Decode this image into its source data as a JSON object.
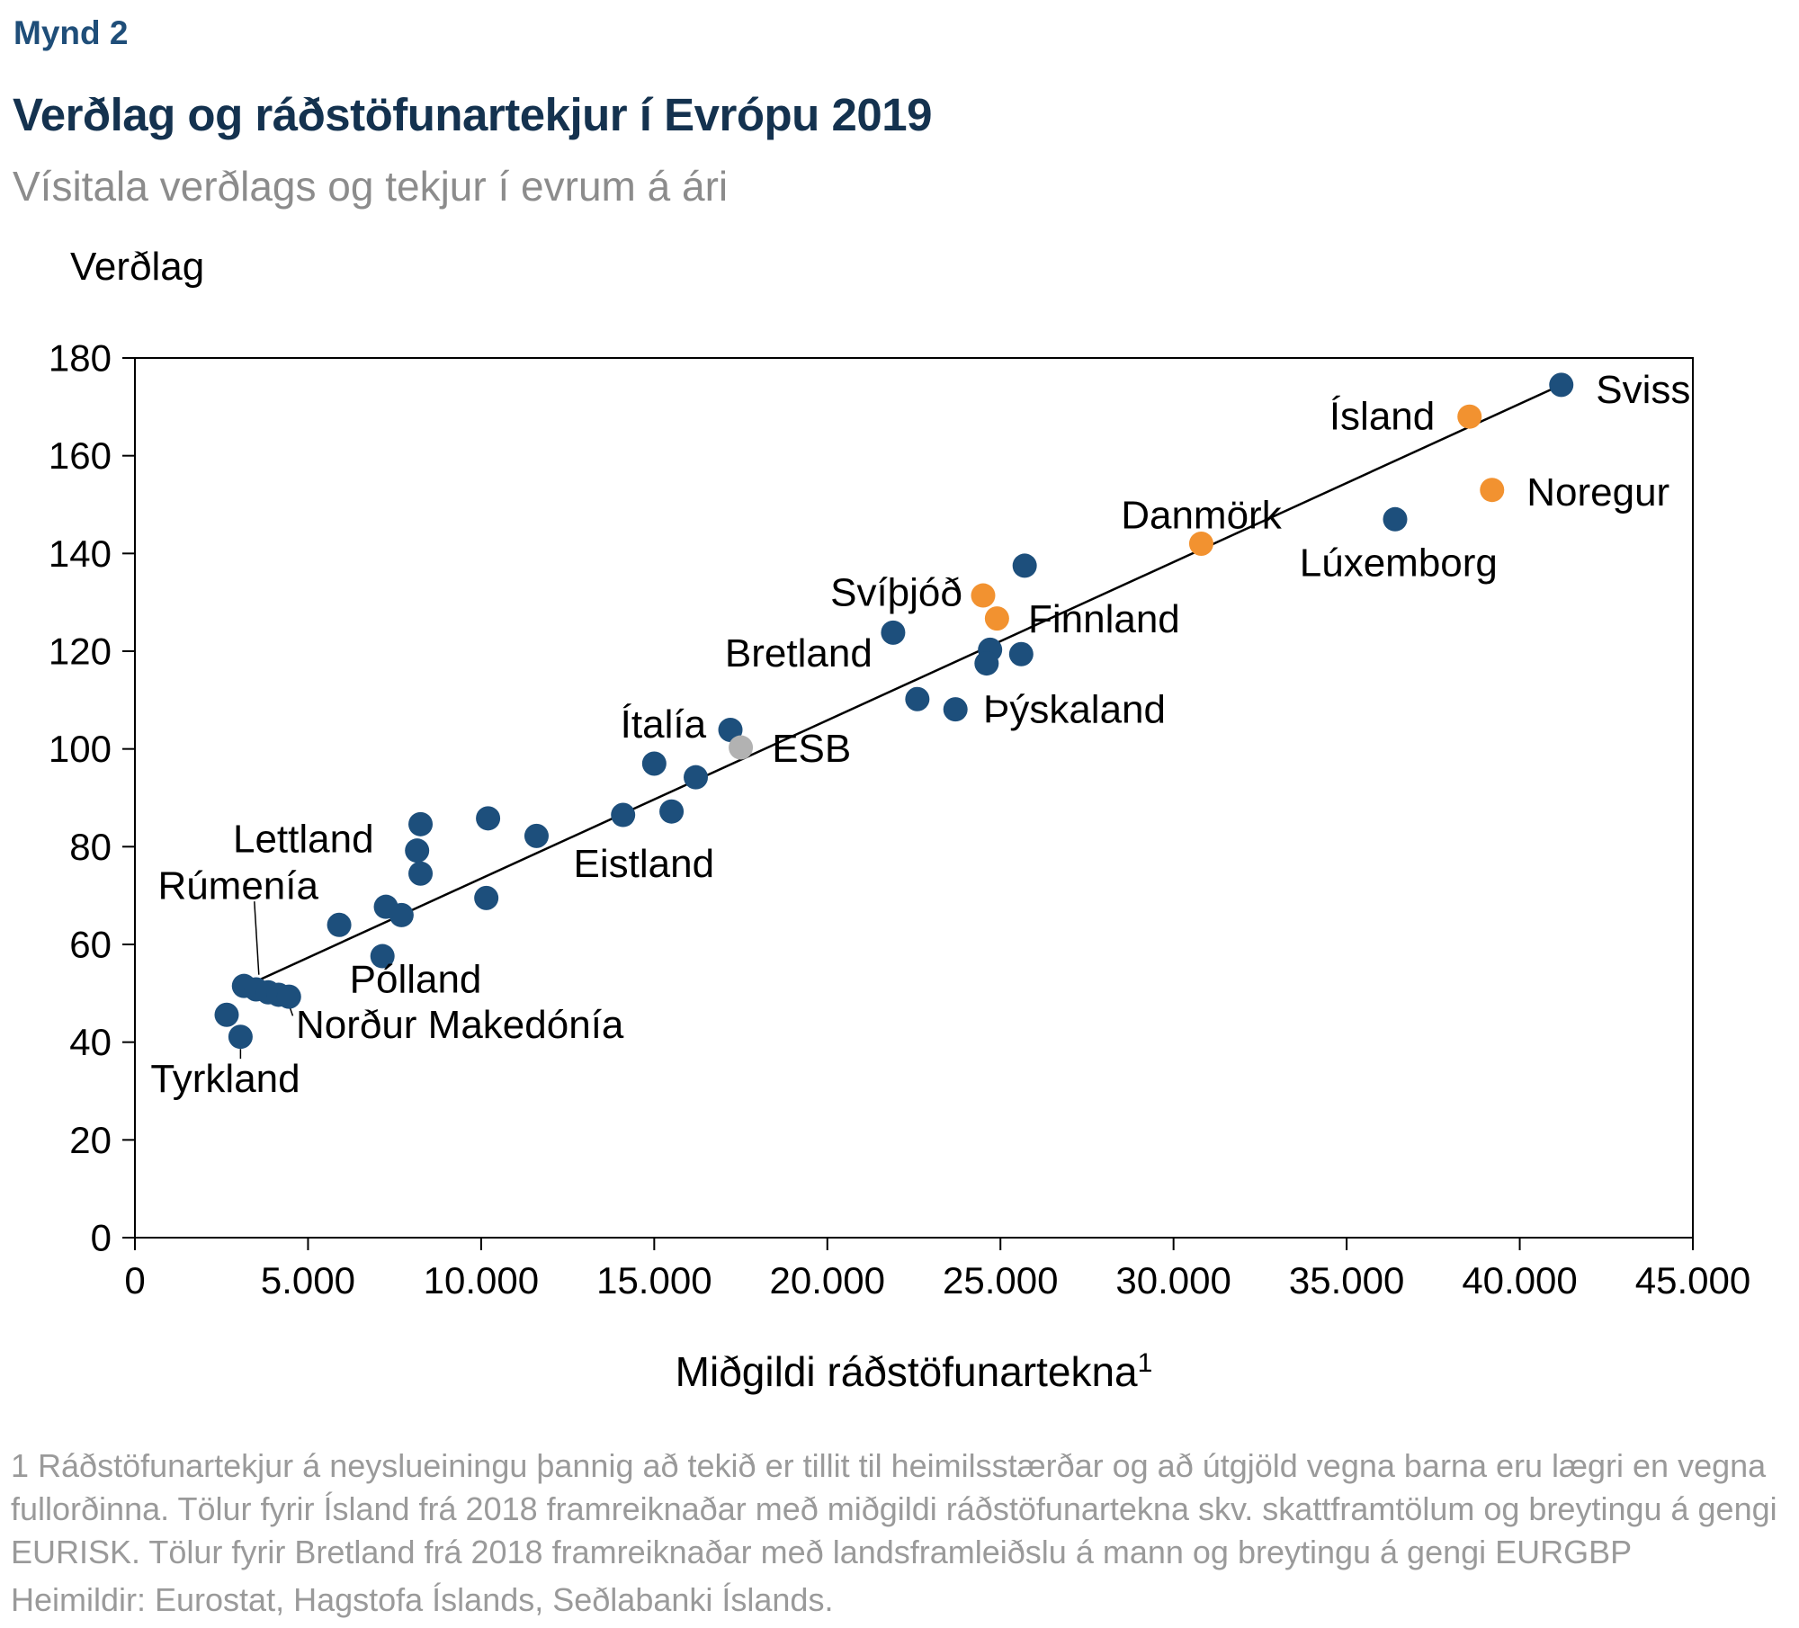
{
  "figure_label": "Mynd 2",
  "title": "Verðlag og ráðstöfunartekjur í Evrópu 2019",
  "subtitle": "Vísitala verðlags og tekjur í evrum á ári",
  "footnote_line": "1 Ráðstöfunartekjur á neyslueiningu þannig að tekið er tillit til heimilsstærðar og að útgjöld vegna barna eru lægri en vegna fullorðinna. Tölur fyrir Ísland frá 2018 framreiknaðar með miðgildi ráðstöfunartekna skv. skattframtölum og breytingu á gengi EURISK. Tölur fyrir Bretland frá 2018 framreiknaðar með landsframleiðslu á mann og breytingu á gengi EURGBP",
  "source_line": "Heimildir: Eurostat, Hagstofa Íslands, Seðlabanki Íslands.",
  "colors": {
    "figure_label": "#1f4e79",
    "title": "#14324f",
    "subtitle": "#8c8c8c",
    "footnote": "#9a9a9a",
    "axis": "#000000"
  },
  "chart_data": {
    "type": "scatter",
    "title": "Verðlag og ráðstöfunartekjur í Evrópu 2019",
    "ylabel": "Verðlag",
    "xlabel": "Miðgildi ráðstöfunartekna",
    "xlabel_superscript": "1",
    "xlim": [
      0,
      45000
    ],
    "ylim": [
      0,
      180
    ],
    "xticks": [
      0,
      5000,
      10000,
      15000,
      20000,
      25000,
      30000,
      35000,
      40000,
      45000
    ],
    "xtick_labels": [
      "0",
      "5.000",
      "10.000",
      "15.000",
      "20.000",
      "25.000",
      "30.000",
      "35.000",
      "40.000",
      "45.000"
    ],
    "yticks": [
      0,
      20,
      40,
      60,
      80,
      100,
      120,
      140,
      160,
      180
    ],
    "ytick_labels": [
      "0",
      "20",
      "40",
      "60",
      "80",
      "100",
      "120",
      "140",
      "160",
      "180"
    ],
    "grid": false,
    "frame": true,
    "point_colors": {
      "blue": "#1d4f7c",
      "orange": "#f29230",
      "gray": "#b2b2b2"
    },
    "trendline": {
      "x1": 2900,
      "y1": 50.5,
      "x2": 41200,
      "y2": 174.5
    },
    "points": [
      {
        "x": 41200,
        "y": 174.5,
        "c": "blue",
        "label": "Sviss",
        "lx": 42200,
        "ly": 173.5,
        "anchor": "start"
      },
      {
        "x": 36400,
        "y": 147,
        "c": "blue",
        "label": "Lúxemborg",
        "lx": 36500,
        "ly": 138,
        "anchor": "middle"
      },
      {
        "x": 25700,
        "y": 137.5,
        "c": "blue"
      },
      {
        "x": 21900,
        "y": 123.8,
        "c": "blue",
        "label": "Bretland",
        "lx": 21300,
        "ly": 119.5,
        "anchor": "end"
      },
      {
        "x": 24700,
        "y": 120.3,
        "c": "blue"
      },
      {
        "x": 25600,
        "y": 119.4,
        "c": "blue"
      },
      {
        "x": 24600,
        "y": 117.5,
        "c": "blue"
      },
      {
        "x": 22600,
        "y": 110.2,
        "c": "blue"
      },
      {
        "x": 23700,
        "y": 108.1,
        "c": "blue",
        "label": "Þýskaland",
        "lx": 24500,
        "ly": 108,
        "anchor": "start"
      },
      {
        "x": 17200,
        "y": 103.9,
        "c": "blue",
        "label": "Ítalía",
        "lx": 16500,
        "ly": 105,
        "anchor": "end"
      },
      {
        "x": 15000,
        "y": 97,
        "c": "blue"
      },
      {
        "x": 16200,
        "y": 94.2,
        "c": "blue"
      },
      {
        "x": 15500,
        "y": 87.2,
        "c": "blue"
      },
      {
        "x": 14100,
        "y": 86.5,
        "c": "blue",
        "label": "Eistland",
        "lx": 14700,
        "ly": 76.5,
        "anchor": "middle"
      },
      {
        "x": 10200,
        "y": 85.8,
        "c": "blue"
      },
      {
        "x": 8250,
        "y": 84.6,
        "c": "blue"
      },
      {
        "x": 11600,
        "y": 82.2,
        "c": "blue"
      },
      {
        "x": 8150,
        "y": 79.2,
        "c": "blue",
        "label": "Lettland",
        "lx": 6900,
        "ly": 81.5,
        "anchor": "end"
      },
      {
        "x": 8250,
        "y": 74.5,
        "c": "blue"
      },
      {
        "x": 10150,
        "y": 69.5,
        "c": "blue"
      },
      {
        "x": 7250,
        "y": 67.7,
        "c": "blue"
      },
      {
        "x": 7700,
        "y": 66,
        "c": "blue"
      },
      {
        "x": 5900,
        "y": 64,
        "c": "blue"
      },
      {
        "x": 7150,
        "y": 57.6,
        "c": "blue",
        "label": "Pólland",
        "lx": 6200,
        "ly": 52.8,
        "anchor": "start"
      },
      {
        "x": 3150,
        "y": 51.5,
        "c": "blue"
      },
      {
        "x": 3500,
        "y": 50.8,
        "c": "blue",
        "label": "Rúmenía",
        "lx": 5300,
        "ly": 72,
        "anchor": "end"
      },
      {
        "x": 3850,
        "y": 50.2,
        "c": "blue"
      },
      {
        "x": 4150,
        "y": 49.7,
        "c": "blue"
      },
      {
        "x": 4450,
        "y": 49.3,
        "c": "blue",
        "label": "Norður Makedónía",
        "lx": 4650,
        "ly": 43.5,
        "anchor": "start"
      },
      {
        "x": 2650,
        "y": 45.6,
        "c": "blue"
      },
      {
        "x": 3050,
        "y": 41.1,
        "c": "blue",
        "label": "Tyrkland",
        "lx": 450,
        "ly": 32.5,
        "anchor": "start"
      },
      {
        "x": 38550,
        "y": 168,
        "c": "orange",
        "label": "Ísland",
        "lx": 37550,
        "ly": 168,
        "anchor": "end"
      },
      {
        "x": 39200,
        "y": 153,
        "c": "orange",
        "label": "Noregur",
        "lx": 40200,
        "ly": 152.5,
        "anchor": "start"
      },
      {
        "x": 30800,
        "y": 142,
        "c": "orange",
        "label": "Danmörk",
        "lx": 30800,
        "ly": 147.8,
        "anchor": "middle"
      },
      {
        "x": 24500,
        "y": 131.4,
        "c": "orange",
        "label": "Svíþjóð",
        "lx": 23900,
        "ly": 132,
        "anchor": "end"
      },
      {
        "x": 24900,
        "y": 126.7,
        "c": "orange",
        "label": "Finnland",
        "lx": 25800,
        "ly": 126.5,
        "anchor": "start"
      },
      {
        "x": 17500,
        "y": 100.3,
        "c": "gray",
        "label": "ESB",
        "lx": 18400,
        "ly": 100,
        "anchor": "start"
      }
    ],
    "connectors": [
      {
        "x1": 3450,
        "y1": 68.8,
        "x2": 3580,
        "y2": 53.8
      },
      {
        "x1": 4480,
        "y1": 47.0,
        "x2": 4560,
        "y2": 45.4
      },
      {
        "x1": 3050,
        "y1": 38.6,
        "x2": 3050,
        "y2": 36.6
      }
    ]
  }
}
